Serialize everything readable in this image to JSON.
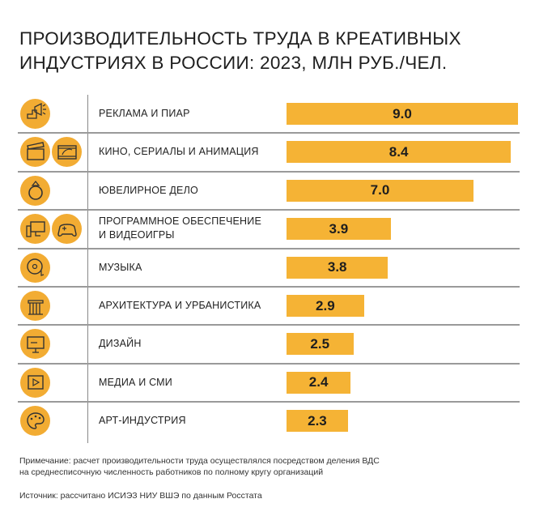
{
  "title_lines": [
    "ПРОИЗВОДИТЕЛЬНОСТЬ ТРУДА В КРЕАТИВНЫХ",
    "ИНДУСТРИЯХ В РОССИИ: 2023, МЛН РУБ./ЧЕЛ."
  ],
  "colors": {
    "bar": "#F5B335",
    "icon_bg": "#F2AC33",
    "divider": "#9a9a9a"
  },
  "chart_data": {
    "type": "bar",
    "orientation": "horizontal",
    "title": "Производительность труда в креативных индустриях в России: 2023, млн руб./чел.",
    "categories": [
      [
        "РЕКЛАМА И ПИАР"
      ],
      [
        "КИНО, СЕРИАЛЫ И АНИМАЦИЯ"
      ],
      [
        "ЮВЕЛИРНОЕ ДЕЛО"
      ],
      [
        "ПРОГРАММНОЕ ОБЕСПЕЧЕНИЕ",
        "И ВИДЕОИГРЫ"
      ],
      [
        "МУЗЫКА"
      ],
      [
        "АРХИТЕКТУРА И УРБАНИСТИКА"
      ],
      [
        "ДИЗАЙН"
      ],
      [
        "МЕДИА И СМИ"
      ],
      [
        "АРТ-ИНДУСТРИЯ"
      ]
    ],
    "values": [
      9.0,
      8.4,
      7.0,
      3.9,
      3.8,
      2.9,
      2.5,
      2.4,
      2.3
    ],
    "value_labels": [
      "9.0",
      "8.4",
      "7.0",
      "3.9",
      "3.8",
      "2.9",
      "2.5",
      "2.4",
      "2.3"
    ],
    "icons": [
      [
        "megaphone-icon"
      ],
      [
        "clapperboard-icon",
        "film-strip-icon"
      ],
      [
        "ring-icon"
      ],
      [
        "computer-icon",
        "gamepad-icon"
      ],
      [
        "vinyl-disc-icon"
      ],
      [
        "building-icon"
      ],
      [
        "monitor-design-icon"
      ],
      [
        "media-player-icon"
      ],
      [
        "palette-icon"
      ]
    ],
    "xlim": [
      0,
      9.0
    ],
    "grid": false,
    "legend": "none"
  },
  "note_lines": [
    "Примечание: расчет производительности труда осуществлялся посредством деления ВДС",
    "на среднесписочную численность работников по полному кругу организаций"
  ],
  "source": "Источник: рассчитано ИСИЭЗ НИУ ВШЭ по данным Росстата"
}
